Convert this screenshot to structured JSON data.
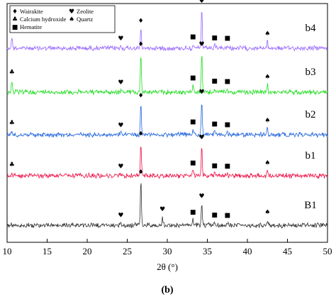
{
  "chart_data": {
    "type": "line",
    "title": "",
    "xlabel": "2θ (°)",
    "ylabel": "",
    "xlim": [
      10,
      50
    ],
    "xticks": [
      "10",
      "15",
      "20",
      "25",
      "30",
      "35",
      "40",
      "45",
      "50"
    ],
    "grid": false,
    "legend_placement": "top-left",
    "panel_label": "(b)",
    "legend": [
      {
        "symbol": "♦",
        "name": "Wairakite"
      },
      {
        "symbol": "♥",
        "name": "Zeolite"
      },
      {
        "symbol": "♣",
        "name": "Calcium hydroxide"
      },
      {
        "symbol": "♠",
        "name": "Quartz"
      },
      {
        "symbol": "■",
        "name": "Hematite"
      }
    ],
    "series": [
      {
        "name": "b4",
        "color": "#9966ff",
        "peaks": [
          {
            "x": 10.6,
            "h": 0.3
          },
          {
            "x": 24.2,
            "h": 0.05
          },
          {
            "x": 26.7,
            "h": 0.5
          },
          {
            "x": 33.2,
            "h": 0.1
          },
          {
            "x": 34.3,
            "h": 1.0
          },
          {
            "x": 35.9,
            "h": 0.07
          },
          {
            "x": 37.5,
            "h": 0.06
          },
          {
            "x": 42.5,
            "h": 0.18
          }
        ],
        "markers": [
          {
            "x": 10.6,
            "s": "♣"
          },
          {
            "x": 24.2,
            "s": "♥"
          },
          {
            "x": 26.7,
            "s": "♦"
          },
          {
            "x": 33.2,
            "s": "■"
          },
          {
            "x": 34.3,
            "s": "♥"
          },
          {
            "x": 35.9,
            "s": "■"
          },
          {
            "x": 37.5,
            "s": "■"
          },
          {
            "x": 42.5,
            "s": "♠"
          }
        ]
      },
      {
        "name": "b3",
        "color": "#22dd22",
        "peaks": [
          {
            "x": 10.6,
            "h": 0.28
          },
          {
            "x": 24.2,
            "h": 0.05
          },
          {
            "x": 26.7,
            "h": 0.92
          },
          {
            "x": 33.2,
            "h": 0.15
          },
          {
            "x": 34.3,
            "h": 0.92
          },
          {
            "x": 35.9,
            "h": 0.08
          },
          {
            "x": 37.5,
            "h": 0.07
          },
          {
            "x": 42.5,
            "h": 0.18
          }
        ],
        "markers": [
          {
            "x": 10.6,
            "s": "♣"
          },
          {
            "x": 24.2,
            "s": "♥"
          },
          {
            "x": 26.7,
            "s": "♦"
          },
          {
            "x": 33.2,
            "s": "■"
          },
          {
            "x": 34.3,
            "s": "♥"
          },
          {
            "x": 35.9,
            "s": "■"
          },
          {
            "x": 37.5,
            "s": "■"
          },
          {
            "x": 42.5,
            "s": "♠"
          }
        ]
      },
      {
        "name": "b2",
        "color": "#2266dd",
        "peaks": [
          {
            "x": 10.6,
            "h": 0.1
          },
          {
            "x": 24.2,
            "h": 0.04
          },
          {
            "x": 26.7,
            "h": 0.72
          },
          {
            "x": 33.2,
            "h": 0.12
          },
          {
            "x": 34.3,
            "h": 0.8
          },
          {
            "x": 35.9,
            "h": 0.07
          },
          {
            "x": 37.5,
            "h": 0.06
          },
          {
            "x": 42.5,
            "h": 0.15
          }
        ],
        "markers": [
          {
            "x": 10.6,
            "s": "♣"
          },
          {
            "x": 24.2,
            "s": "♥"
          },
          {
            "x": 26.7,
            "s": "♦"
          },
          {
            "x": 33.2,
            "s": "■"
          },
          {
            "x": 34.3,
            "s": "♥"
          },
          {
            "x": 35.9,
            "s": "■"
          },
          {
            "x": 37.5,
            "s": "■"
          },
          {
            "x": 42.5,
            "s": "♠"
          }
        ]
      },
      {
        "name": "b1",
        "color": "#ee1144",
        "peaks": [
          {
            "x": 10.6,
            "h": 0.08
          },
          {
            "x": 24.2,
            "h": 0.04
          },
          {
            "x": 26.7,
            "h": 0.78
          },
          {
            "x": 33.2,
            "h": 0.12
          },
          {
            "x": 34.3,
            "h": 0.7
          },
          {
            "x": 35.9,
            "h": 0.06
          },
          {
            "x": 37.5,
            "h": 0.05
          },
          {
            "x": 42.5,
            "h": 0.12
          }
        ],
        "markers": [
          {
            "x": 10.6,
            "s": "♣"
          },
          {
            "x": 24.2,
            "s": "♥"
          },
          {
            "x": 26.7,
            "s": "♦"
          },
          {
            "x": 33.2,
            "s": "■"
          },
          {
            "x": 34.3,
            "s": "♥"
          },
          {
            "x": 35.9,
            "s": "■"
          },
          {
            "x": 37.5,
            "s": "■"
          },
          {
            "x": 42.5,
            "s": "♠"
          }
        ]
      },
      {
        "name": "B1",
        "color": "#333333",
        "peaks": [
          {
            "x": 24.2,
            "h": 0.05
          },
          {
            "x": 26.7,
            "h": 0.95
          },
          {
            "x": 29.4,
            "h": 0.18
          },
          {
            "x": 33.2,
            "h": 0.12
          },
          {
            "x": 34.3,
            "h": 0.45
          },
          {
            "x": 35.9,
            "h": 0.06
          },
          {
            "x": 37.5,
            "h": 0.05
          },
          {
            "x": 42.5,
            "h": 0.12
          }
        ],
        "markers": [
          {
            "x": 24.2,
            "s": "♥"
          },
          {
            "x": 26.7,
            "s": "♦"
          },
          {
            "x": 29.4,
            "s": "♥"
          },
          {
            "x": 33.2,
            "s": "■"
          },
          {
            "x": 34.3,
            "s": "♥"
          },
          {
            "x": 35.9,
            "s": "■"
          },
          {
            "x": 37.5,
            "s": "■"
          },
          {
            "x": 42.5,
            "s": "♠"
          }
        ]
      }
    ]
  }
}
